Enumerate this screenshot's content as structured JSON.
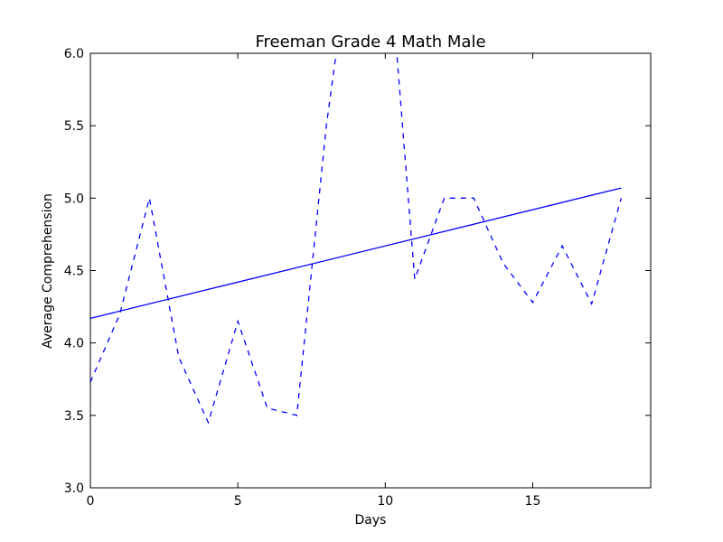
{
  "chart_data": {
    "type": "line",
    "title": "Freeman Grade 4 Math Male",
    "xlabel": "Days",
    "ylabel": "Average Comprehension",
    "xlim": [
      0,
      19
    ],
    "ylim": [
      3.0,
      6.0
    ],
    "xticks": [
      0,
      5,
      10,
      15
    ],
    "xtick_labels": [
      "0",
      "5",
      "10",
      "15"
    ],
    "yticks": [
      3.0,
      3.5,
      4.0,
      4.5,
      5.0,
      5.5,
      6.0
    ],
    "ytick_labels": [
      "3.0",
      "3.5",
      "4.0",
      "4.5",
      "5.0",
      "5.5",
      "6.0"
    ],
    "grid": false,
    "color": "#0000ff",
    "series": [
      {
        "style": "dashed",
        "x": [
          0,
          1,
          2,
          3,
          4,
          5,
          6,
          7,
          8,
          9,
          10,
          11,
          12,
          13,
          14,
          15,
          16,
          17,
          18
        ],
        "y": [
          3.73,
          4.2,
          5.0,
          3.9,
          3.45,
          4.15,
          3.55,
          3.5,
          5.5,
          7.0,
          7.0,
          4.44,
          5.0,
          5.0,
          4.55,
          4.28,
          4.67,
          4.27,
          5.0
        ]
      },
      {
        "style": "solid",
        "x": [
          0,
          18
        ],
        "y": [
          4.17,
          5.07
        ]
      }
    ]
  }
}
